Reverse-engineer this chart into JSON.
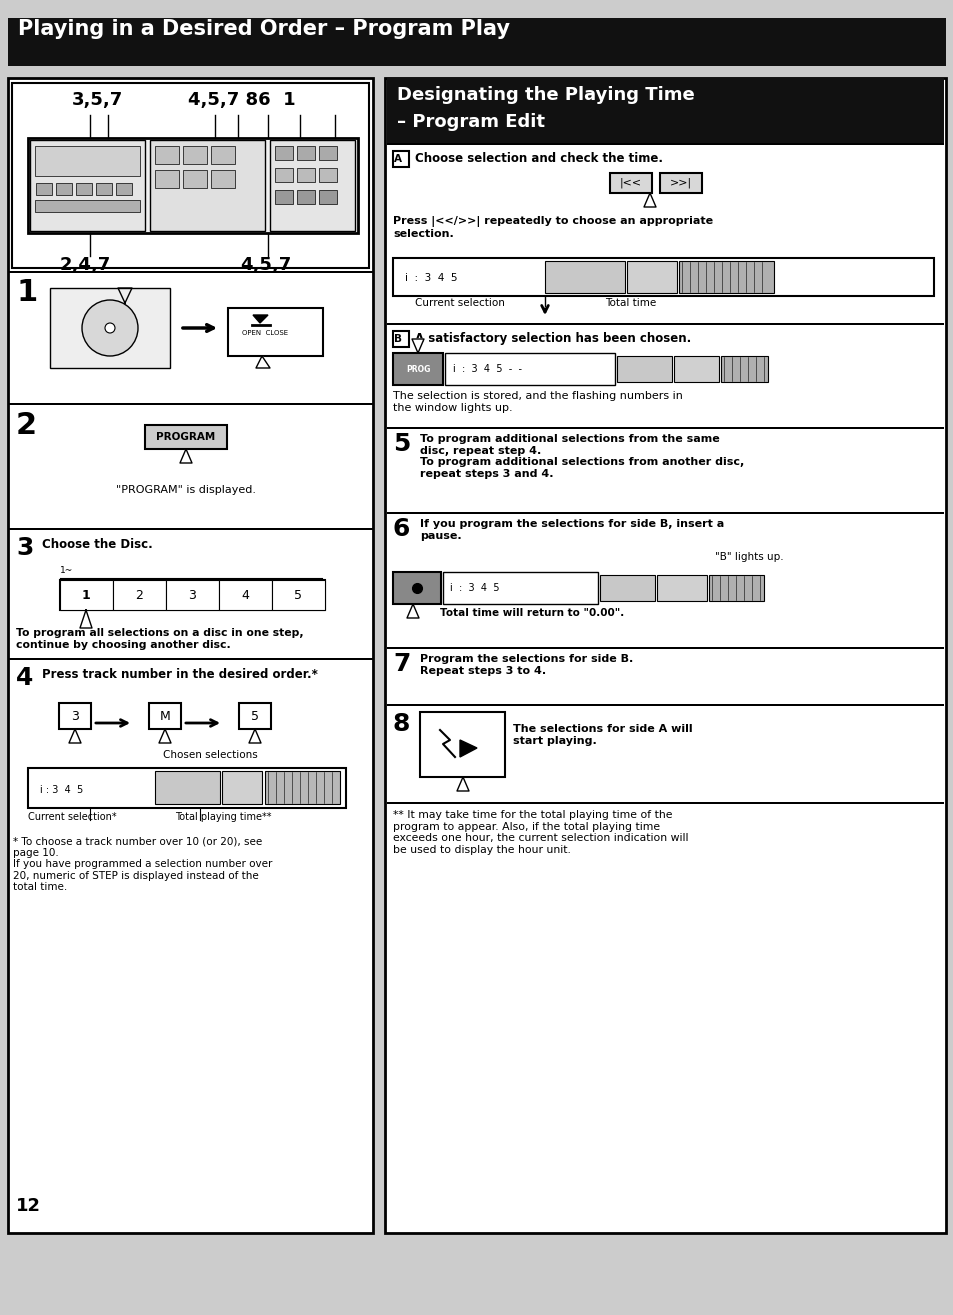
{
  "bg_color": "#cccccc",
  "title": "Playing in a Desired Order – Program Play",
  "right_title_line1": "Designating the Playing Time",
  "right_title_line2": "– Program Edit",
  "step2_caption": "\"PROGRAM\" is displayed.",
  "step3_header": "Choose the Disc.",
  "step3_caption": "To program all selections on a disc in one step,\ncontinue by choosing another disc.",
  "step4_header": "Press track number in the desired order.*",
  "chosen_label": "Chosen selections",
  "current_sel_label": "Current selection*",
  "total_time_label": "Total playing time**",
  "footer_left": "* To choose a track number over 10 (or 20), see\npage 10.\nIf you have programmed a selection number over\n20, numeric of STEP is displayed instead of the\ntotal time.",
  "A_text": "Choose selection and check the time.",
  "press_text": "Press |<</>>| repeatedly to choose an appropriate\nselection.",
  "current_sel": "Current selection",
  "total_time_disp": "Total time",
  "B_text": "A satisfactory selection has been chosen.",
  "stored_text": "The selection is stored, and the flashing numbers in\nthe window lights up.",
  "step5_body": "To program additional selections from the same\ndisc, repeat step 4.\nTo program additional selections from another disc,\nrepeat steps 3 and 4.",
  "step6_header": "If you program the selections for side B, insert a\npause.",
  "b_lights": "\"B\" lights up.",
  "total_return": "Total time will return to \"0.00\".",
  "step7_body": "Program the selections for side B.\nRepeat steps 3 to 4.",
  "step8_body": "The selections for side A will\nstart playing.",
  "footer_right": "** It may take time for the total playing time of the\nprogram to appear. Also, if the total playing time\nexceeds one hour, the current selection indication will\nbe used to display the hour unit.",
  "page_num": "12",
  "disc_nums": [
    "1",
    "2",
    "3",
    "4",
    "5"
  ],
  "label_357": "3,5,7",
  "label_4578": "4,5,7 86  1",
  "label_247": "2,4,7",
  "label_457": "4,5,7"
}
